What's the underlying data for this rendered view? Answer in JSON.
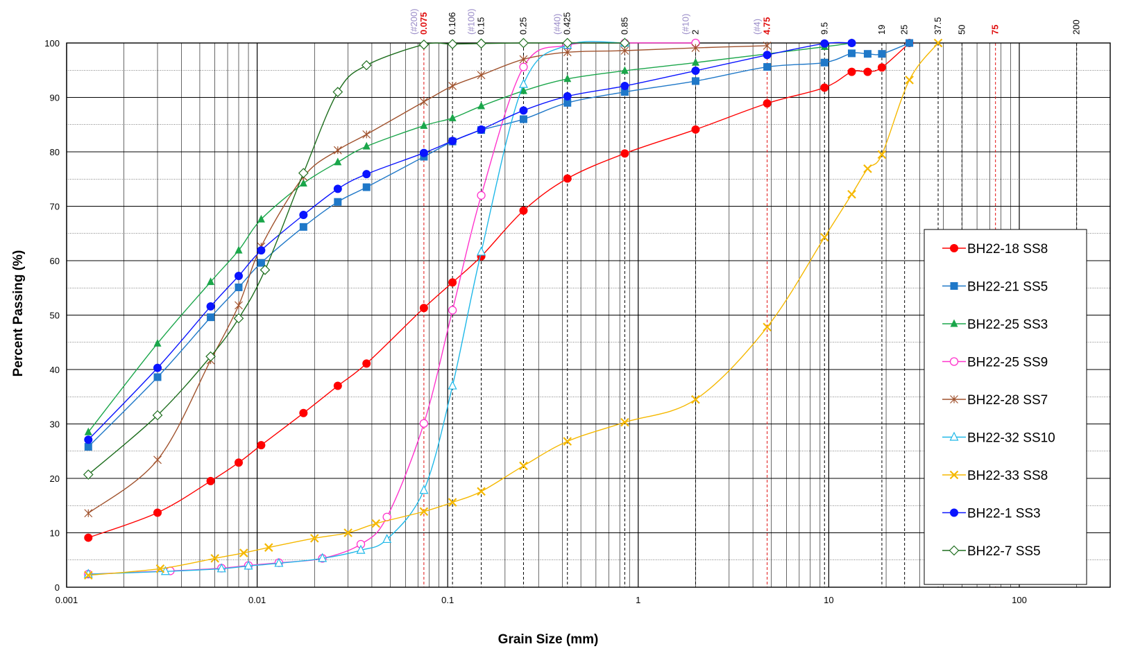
{
  "chart_data": {
    "type": "scatter",
    "title": "",
    "xlabel": "Grain Size   (mm)",
    "ylabel": "Percent Passing     (%)",
    "xscale": "log",
    "xlim": [
      0.001,
      300
    ],
    "ylim": [
      0,
      100
    ],
    "grid": true,
    "legend_position": "right",
    "x_tick_labels": [
      "0.001",
      "0.01",
      "0.1",
      "1",
      "10",
      "100"
    ],
    "y_tick_labels": [
      "0",
      "10",
      "20",
      "30",
      "40",
      "50",
      "60",
      "70",
      "80",
      "90",
      "100"
    ],
    "sieve_markers": [
      {
        "x": 0.075,
        "label": "0.075",
        "sieve": "(#200)",
        "emphasis": true
      },
      {
        "x": 0.106,
        "label": "0.106",
        "sieve": "",
        "emphasis": false
      },
      {
        "x": 0.15,
        "label": "0.15",
        "sieve": "(#100)",
        "emphasis": false
      },
      {
        "x": 0.25,
        "label": "0.25",
        "sieve": "",
        "emphasis": false
      },
      {
        "x": 0.425,
        "label": "0.425",
        "sieve": "(#40)",
        "emphasis": false
      },
      {
        "x": 0.85,
        "label": "0.85",
        "sieve": "",
        "emphasis": false
      },
      {
        "x": 2,
        "label": "2",
        "sieve": "(#10)",
        "emphasis": false
      },
      {
        "x": 4.75,
        "label": "4.75",
        "sieve": "(#4)",
        "emphasis": true
      },
      {
        "x": 9.5,
        "label": "9.5",
        "sieve": "",
        "emphasis": false
      },
      {
        "x": 19,
        "label": "19",
        "sieve": "",
        "emphasis": false
      },
      {
        "x": 25,
        "label": "25",
        "sieve": "",
        "emphasis": false
      },
      {
        "x": 37.5,
        "label": "37.5",
        "sieve": "",
        "emphasis": false
      },
      {
        "x": 50,
        "label": "50",
        "sieve": "",
        "emphasis": false
      },
      {
        "x": 75,
        "label": "75",
        "sieve": "",
        "emphasis": true
      },
      {
        "x": 200,
        "label": "200",
        "sieve": "",
        "emphasis": false
      }
    ],
    "series": [
      {
        "name": "BH22-18 SS8",
        "color": "#ff0000",
        "marker": "circle-filled",
        "x": [
          0.0013,
          0.003,
          0.0057,
          0.008,
          0.0105,
          0.0175,
          0.0265,
          0.0375,
          0.075,
          0.106,
          0.15,
          0.25,
          0.425,
          0.85,
          2,
          4.75,
          9.5,
          13.2,
          16,
          19,
          26.5
        ],
        "y": [
          9.1,
          13.7,
          19.5,
          22.9,
          26.1,
          32,
          37,
          41.1,
          51.3,
          56,
          60.8,
          69.2,
          75.1,
          79.7,
          84.1,
          88.9,
          91.8,
          94.7,
          94.7,
          95.5,
          100
        ]
      },
      {
        "name": "BH22-21 SS5",
        "color": "#1f78c8",
        "marker": "square-filled",
        "x": [
          0.0013,
          0.003,
          0.0057,
          0.008,
          0.0105,
          0.0175,
          0.0265,
          0.0375,
          0.075,
          0.106,
          0.15,
          0.25,
          0.425,
          0.85,
          2,
          4.75,
          9.5,
          13.2,
          16,
          19,
          26.5
        ],
        "y": [
          25.8,
          38.6,
          49.6,
          55.1,
          59.6,
          66.2,
          70.8,
          73.5,
          79.1,
          81.9,
          84,
          86,
          89,
          91,
          93,
          95.6,
          96.4,
          98.1,
          98,
          98,
          100
        ]
      },
      {
        "name": "BH22-25 SS3",
        "color": "#1aa64a",
        "marker": "triangle-filled",
        "x": [
          0.0013,
          0.003,
          0.0057,
          0.008,
          0.0105,
          0.0175,
          0.0265,
          0.0375,
          0.075,
          0.106,
          0.15,
          0.25,
          0.425,
          0.85,
          2,
          9.5,
          13.2
        ],
        "y": [
          28.5,
          44.8,
          56.1,
          61.9,
          67.6,
          74.2,
          78.1,
          81,
          84.8,
          86.2,
          88.4,
          91.2,
          93.4,
          94.9,
          96.4,
          99.3,
          100
        ]
      },
      {
        "name": "BH22-25 SS9",
        "color": "#ff33cc",
        "marker": "circle-open",
        "x": [
          0.0013,
          0.0035,
          0.0065,
          0.009,
          0.013,
          0.022,
          0.035,
          0.048,
          0.075,
          0.106,
          0.15,
          0.25,
          0.425,
          0.85,
          2
        ],
        "y": [
          2.4,
          3,
          3.5,
          4,
          4.5,
          5.3,
          7.9,
          12.9,
          30.1,
          50.9,
          72,
          95.6,
          99.6,
          100,
          100
        ]
      },
      {
        "name": "BH22-28 SS7",
        "color": "#a0522d",
        "marker": "star",
        "x": [
          0.0013,
          0.003,
          0.0057,
          0.008,
          0.0105,
          0.0175,
          0.0265,
          0.0375,
          0.075,
          0.106,
          0.15,
          0.25,
          0.425,
          0.85,
          2,
          4.75
        ],
        "y": [
          13.6,
          23.4,
          41.7,
          51.8,
          62.6,
          75.4,
          80.3,
          83.2,
          89.2,
          92.1,
          94.1,
          97,
          98.3,
          98.6,
          99.1,
          99.5
        ]
      },
      {
        "name": "BH22-32 SS10",
        "color": "#1fb8e8",
        "marker": "triangle-open",
        "x": [
          0.0013,
          0.0033,
          0.0065,
          0.009,
          0.013,
          0.022,
          0.035,
          0.048,
          0.075,
          0.106,
          0.15,
          0.25,
          0.425,
          0.85
        ],
        "y": [
          2.4,
          2.9,
          3.4,
          3.9,
          4.4,
          5.3,
          6.8,
          8.8,
          17.8,
          37,
          61.6,
          92.4,
          99.6,
          100
        ]
      },
      {
        "name": "BH22-33 SS8",
        "color": "#f5b800",
        "marker": "x",
        "x": [
          0.0013,
          0.0031,
          0.006,
          0.0085,
          0.0115,
          0.02,
          0.03,
          0.042,
          0.075,
          0.106,
          0.15,
          0.25,
          0.425,
          0.85,
          2,
          4.75,
          9.5,
          13.2,
          16,
          19,
          26.5,
          37.5
        ],
        "y": [
          2.2,
          3.4,
          5.3,
          6.3,
          7.3,
          9,
          10,
          11.7,
          13.9,
          15.6,
          17.6,
          22.3,
          26.8,
          30.3,
          34.5,
          47.8,
          64.3,
          72.2,
          76.9,
          79.5,
          93.2,
          100
        ]
      },
      {
        "name": "BH22-1 SS3",
        "color": "#0a14ff",
        "marker": "circle-filled",
        "x": [
          0.0013,
          0.003,
          0.0057,
          0.008,
          0.0105,
          0.0175,
          0.0265,
          0.0375,
          0.075,
          0.106,
          0.15,
          0.25,
          0.425,
          0.85,
          2,
          4.75,
          9.5,
          13.2
        ],
        "y": [
          27.1,
          40.3,
          51.6,
          57.2,
          61.9,
          68.4,
          73.2,
          75.9,
          79.8,
          82,
          84.1,
          87.6,
          90.2,
          92.1,
          94.9,
          97.8,
          99.9,
          100
        ]
      },
      {
        "name": "BH22-7 SS5",
        "color": "#1e6e1e",
        "marker": "diamond-open",
        "x": [
          0.0013,
          0.003,
          0.0057,
          0.008,
          0.011,
          0.0175,
          0.0265,
          0.0375,
          0.075,
          0.106,
          0.15,
          0.25,
          0.425,
          0.85
        ],
        "y": [
          20.7,
          31.6,
          42.4,
          49.4,
          58.3,
          76.1,
          91,
          95.9,
          99.7,
          99.8,
          99.9,
          100,
          100,
          100
        ]
      }
    ]
  }
}
